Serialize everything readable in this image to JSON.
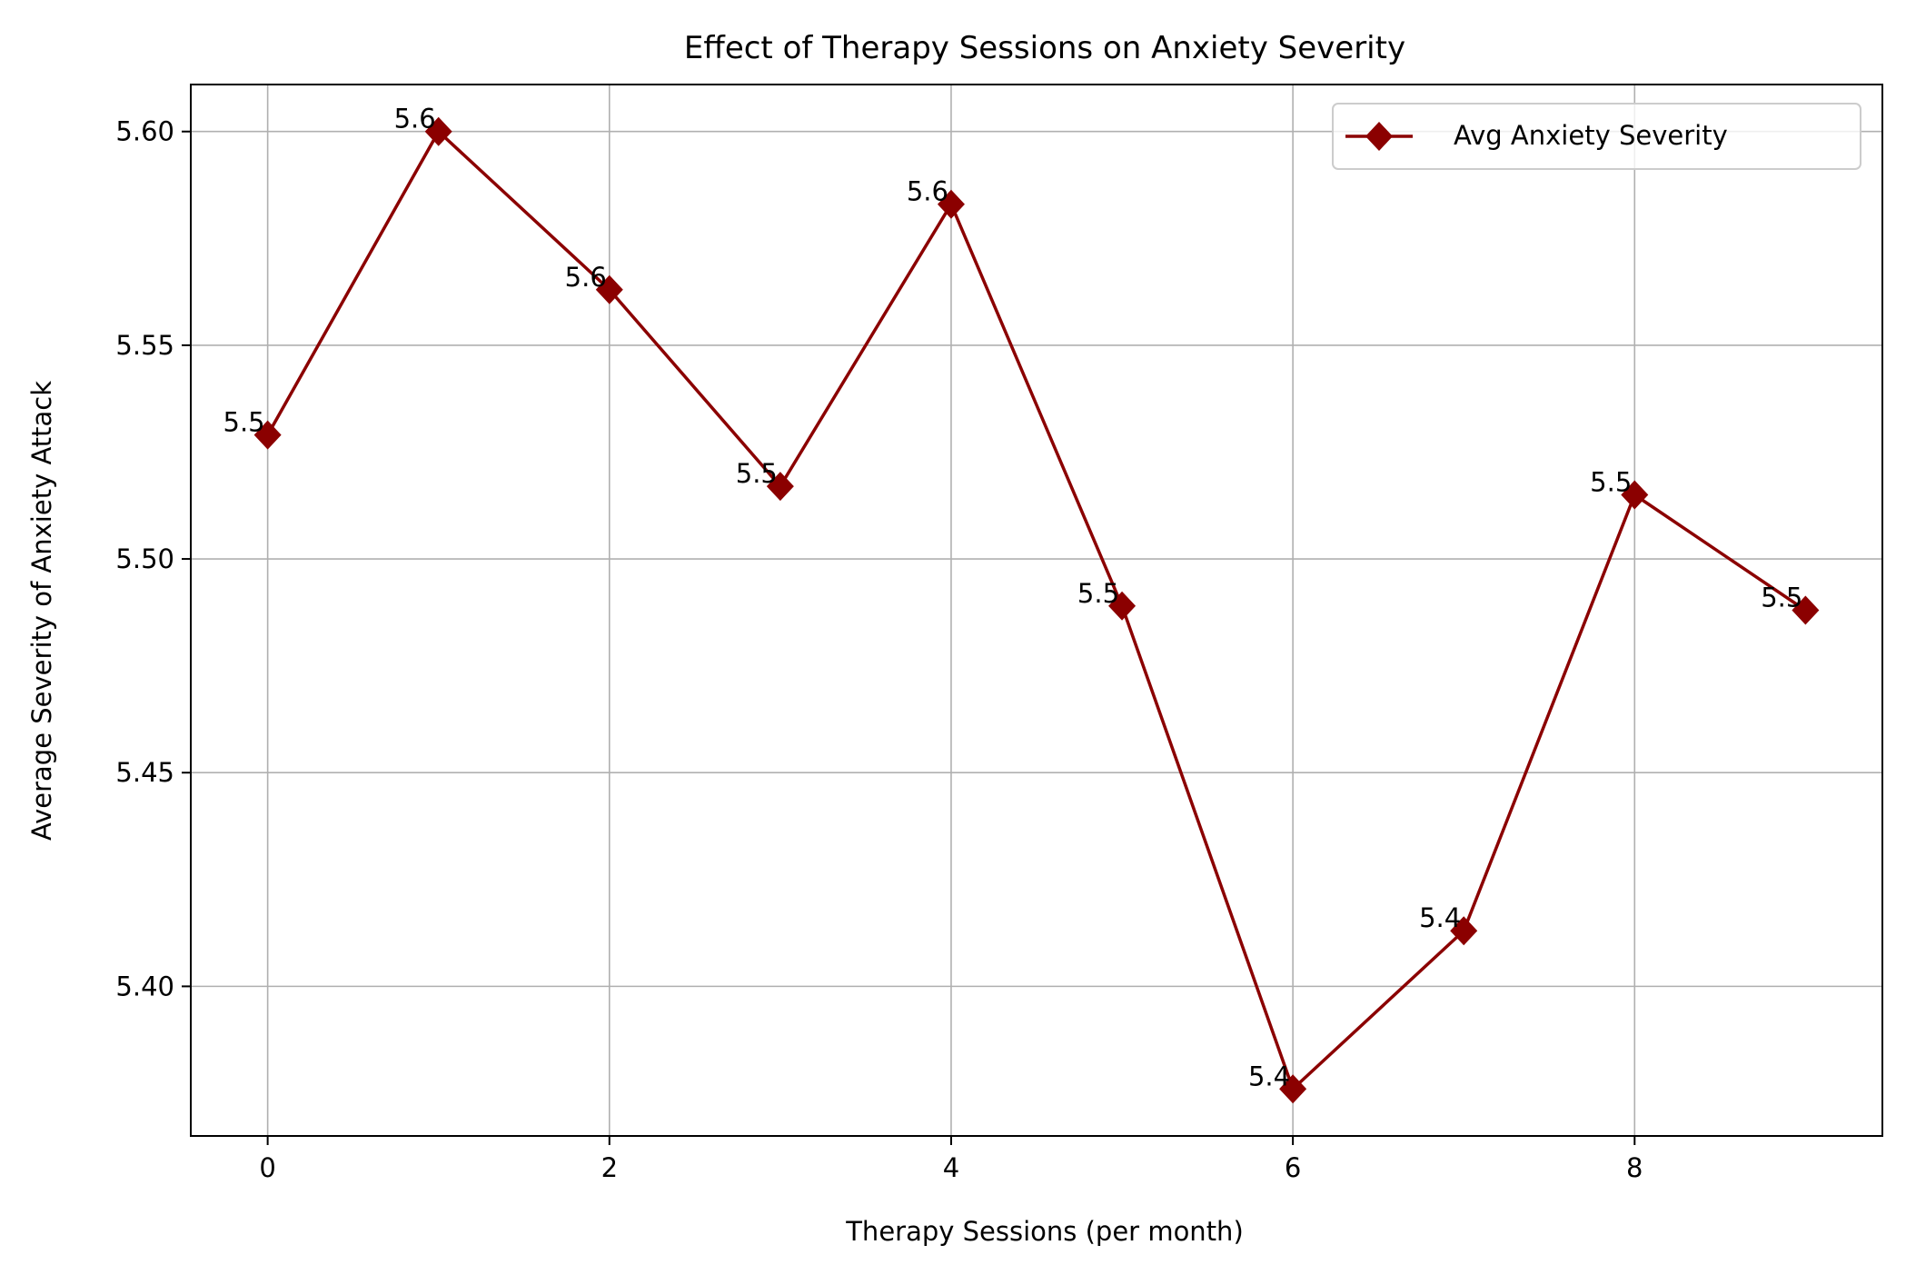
{
  "chart_data": {
    "type": "line",
    "title": "Effect of Therapy Sessions on Anxiety Severity",
    "xlabel": "Therapy Sessions (per month)",
    "ylabel": "Average Severity of Anxiety Attack",
    "x": [
      0,
      1,
      2,
      3,
      4,
      5,
      6,
      7,
      8,
      9
    ],
    "series": [
      {
        "name": "Avg Anxiety Severity",
        "values": [
          5.529,
          5.6,
          5.563,
          5.517,
          5.583,
          5.489,
          5.376,
          5.413,
          5.515,
          5.488
        ],
        "labels": [
          "5.5",
          "5.6",
          "5.6",
          "5.5",
          "5.6",
          "5.5",
          "5.4",
          "5.4",
          "5.5",
          "5.5"
        ],
        "color": "#8b0000",
        "marker": "diamond"
      }
    ],
    "xlim": [
      -0.45,
      9.45
    ],
    "ylim": [
      5.365,
      5.611
    ],
    "xticks": [
      0,
      2,
      4,
      6,
      8
    ],
    "xtick_labels": [
      "0",
      "2",
      "4",
      "6",
      "8"
    ],
    "yticks": [
      5.4,
      5.45,
      5.5,
      5.55,
      5.6
    ],
    "ytick_labels": [
      "5.40",
      "5.45",
      "5.50",
      "5.55",
      "5.60"
    ],
    "grid": true,
    "legend_position": "top-right"
  }
}
